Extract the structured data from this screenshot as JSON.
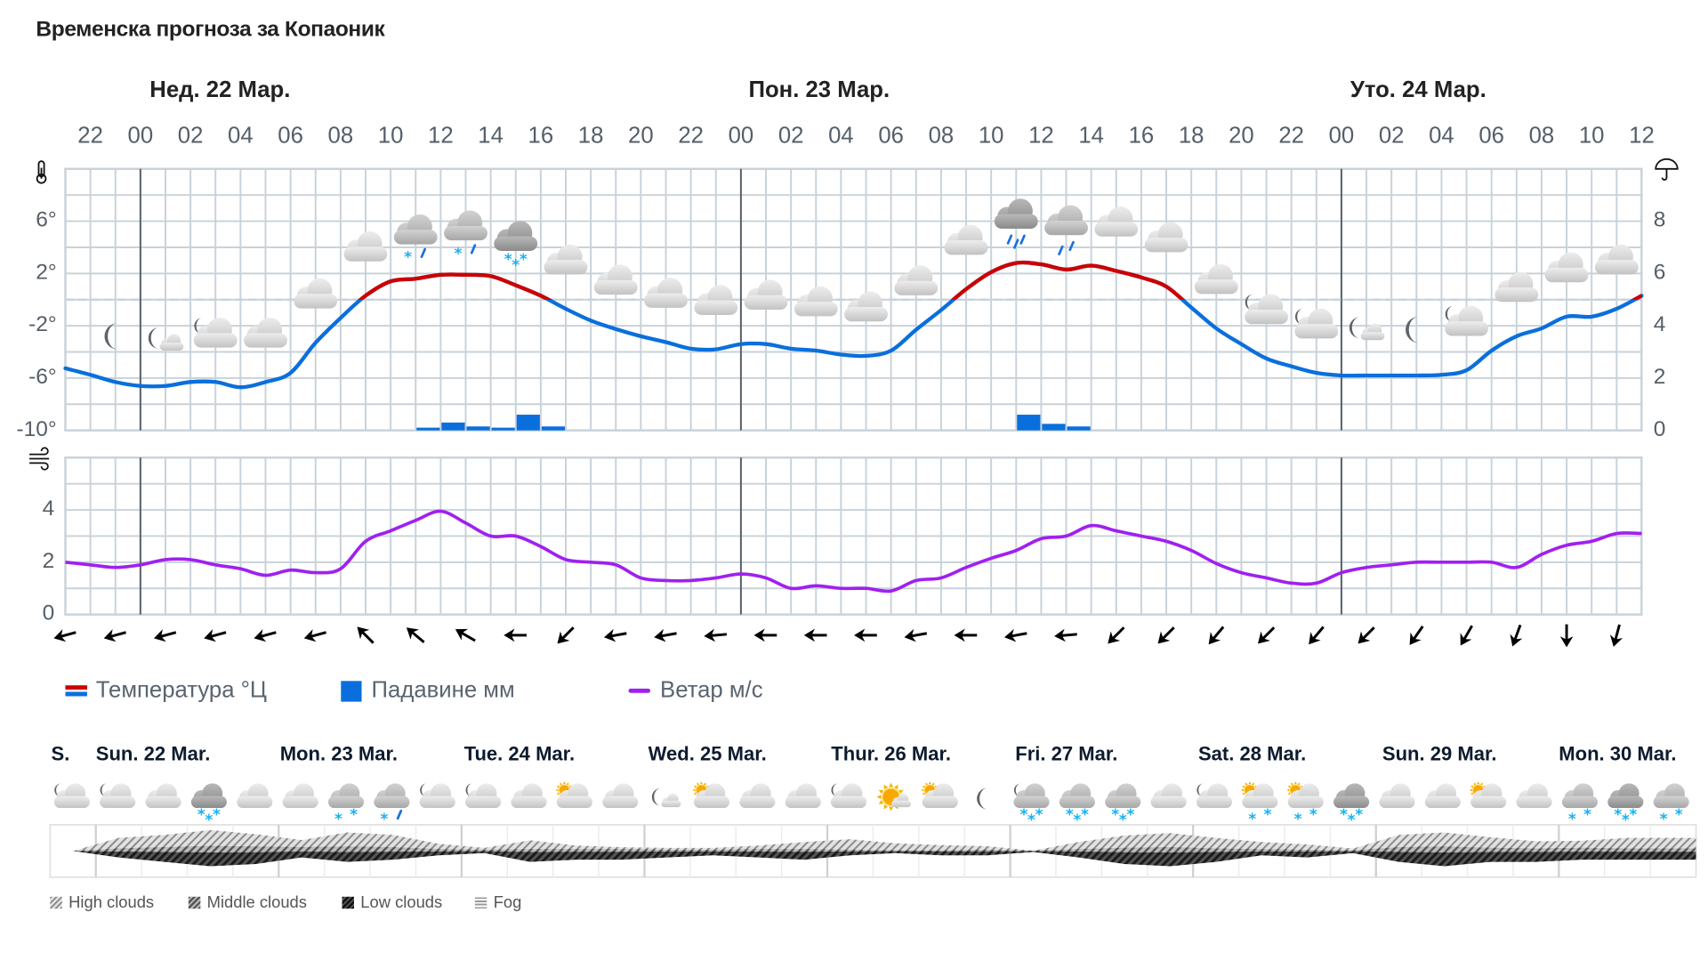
{
  "title": "Временска прогноза за Копаоник",
  "top_chart": {
    "day_headers": [
      "Нед. 22 Мар.",
      "Пон. 23 Мар.",
      "Уто. 24 Мар."
    ],
    "hour_labels": [
      "22",
      "00",
      "02",
      "04",
      "06",
      "08",
      "10",
      "12",
      "14",
      "16",
      "18",
      "20",
      "22",
      "00",
      "02",
      "04",
      "06",
      "08",
      "10",
      "12",
      "14",
      "16",
      "18",
      "20",
      "22",
      "00",
      "02",
      "04",
      "06",
      "08",
      "10",
      "12"
    ],
    "temp_axis_labels": [
      "6°",
      "2°",
      "-2°",
      "-6°",
      "-10°"
    ],
    "precip_axis_labels": [
      "8",
      "6",
      "4",
      "2",
      "0"
    ],
    "wind_axis_labels": [
      "4",
      "2",
      "0"
    ],
    "icons": {
      "thermometer": "thermometer-icon",
      "umbrella": "umbrella-icon",
      "wind": "wind-icon"
    },
    "weather_symbols": [
      [
        "moon",
        ""
      ],
      [
        "moon-small-cloud",
        ""
      ],
      [
        "moon-cloud",
        ""
      ],
      [
        "cloud",
        ""
      ],
      [
        "cloud",
        ""
      ],
      [
        "cloud",
        ""
      ],
      [
        "cloud-grey",
        "snow-rain"
      ],
      [
        "cloud-grey",
        "snow-rain"
      ],
      [
        "cloud-dark",
        "snow3"
      ],
      [
        "cloud",
        ""
      ],
      [
        "cloud",
        ""
      ],
      [
        "cloud",
        ""
      ],
      [
        "cloud",
        ""
      ],
      [
        "cloud",
        ""
      ],
      [
        "cloud",
        ""
      ],
      [
        "cloud",
        ""
      ],
      [
        "cloud",
        ""
      ],
      [
        "cloud",
        ""
      ],
      [
        "cloud-dark",
        "rain3"
      ],
      [
        "cloud-grey",
        "rain2"
      ],
      [
        "cloud",
        ""
      ],
      [
        "cloud",
        ""
      ],
      [
        "cloud",
        ""
      ],
      [
        "moon-cloud",
        ""
      ],
      [
        "moon-cloud",
        ""
      ],
      [
        "moon-small-cloud",
        ""
      ],
      [
        "moon",
        ""
      ],
      [
        "moon-cloud",
        ""
      ],
      [
        "cloud",
        ""
      ],
      [
        "cloud",
        ""
      ],
      [
        "cloud",
        ""
      ]
    ],
    "wind_arrow_bearings": [
      255,
      255,
      255,
      255,
      255,
      255,
      315,
      310,
      300,
      270,
      225,
      260,
      260,
      265,
      270,
      270,
      270,
      260,
      270,
      260,
      265,
      225,
      225,
      220,
      225,
      220,
      225,
      215,
      210,
      200,
      180,
      195
    ],
    "legend": [
      {
        "label": "Температура °Ц",
        "colors": [
          "#cc0000",
          "#0a6fdc"
        ]
      },
      {
        "label": "Падавине мм",
        "color": "#0a6fdc"
      },
      {
        "label": "Ветар м/с",
        "color": "#a020f0"
      }
    ]
  },
  "chart_data": [
    {
      "type": "line",
      "title": "",
      "x": [
        "21.03 21",
        "21.03 22",
        "21.03 23",
        "22.03 00",
        "22.03 01",
        "22.03 02",
        "22.03 03",
        "22.03 04",
        "22.03 05",
        "22.03 06",
        "22.03 07",
        "22.03 08",
        "22.03 09",
        "22.03 10",
        "22.03 11",
        "22.03 12",
        "22.03 13",
        "22.03 14",
        "22.03 15",
        "22.03 16",
        "22.03 17",
        "22.03 18",
        "22.03 19",
        "22.03 20",
        "22.03 21",
        "22.03 22",
        "22.03 23",
        "23.03 00",
        "23.03 01",
        "23.03 02",
        "23.03 03",
        "23.03 04",
        "23.03 05",
        "23.03 06",
        "23.03 07",
        "23.03 08",
        "23.03 09",
        "23.03 10",
        "23.03 11",
        "23.03 12",
        "23.03 13",
        "23.03 14",
        "23.03 15",
        "23.03 16",
        "23.03 17",
        "23.03 18",
        "23.03 19",
        "23.03 20",
        "23.03 21",
        "23.03 22",
        "23.03 23",
        "24.03 00",
        "24.03 01",
        "24.03 02",
        "24.03 03",
        "24.03 04",
        "24.03 05",
        "24.03 06",
        "24.03 07",
        "24.03 08",
        "24.03 09",
        "24.03 10",
        "24.03 11",
        "24.03 12"
      ],
      "ylim": [
        -10,
        10
      ],
      "y2lim": [
        0,
        10
      ],
      "grid": true,
      "series": [
        {
          "name": "Температура °Ц",
          "color_above_zero": "#cc0000",
          "color_below_zero": "#0a6fdc",
          "values": [
            -5.25,
            -5.75,
            -6.3,
            -6.6,
            -6.6,
            -6.3,
            -6.3,
            -6.7,
            -6.3,
            -5.6,
            -3.3,
            -1.4,
            0.3,
            1.4,
            1.6,
            1.9,
            1.9,
            1.8,
            1.1,
            0.3,
            -0.7,
            -1.6,
            -2.25,
            -2.8,
            -3.25,
            -3.75,
            -3.8,
            -3.4,
            -3.4,
            -3.75,
            -3.9,
            -4.2,
            -4.3,
            -3.9,
            -2.3,
            -0.8,
            0.8,
            2.1,
            2.8,
            2.7,
            2.3,
            2.6,
            2.2,
            1.7,
            1.0,
            -0.6,
            -2.2,
            -3.4,
            -4.5,
            -5.1,
            -5.6,
            -5.8,
            -5.8,
            -5.8,
            -5.8,
            -5.75,
            -5.4,
            -3.9,
            -2.8,
            -2.2,
            -1.3,
            -1.3,
            -0.7,
            0.3
          ]
        }
      ],
      "bars": {
        "name": "Падавине мм",
        "color": "#0a6fdc",
        "items": [
          {
            "x": "22.03 11",
            "value": 0.05
          },
          {
            "x": "22.03 12",
            "value": 0.3
          },
          {
            "x": "22.03 13",
            "value": 0.15
          },
          {
            "x": "22.03 14",
            "value": 0.05
          },
          {
            "x": "22.03 15",
            "value": 0.6
          },
          {
            "x": "22.03 16",
            "value": 0.15
          },
          {
            "x": "23.03 11",
            "value": 0.6
          },
          {
            "x": "23.03 12",
            "value": 0.25
          },
          {
            "x": "23.03 13",
            "value": 0.15
          }
        ]
      }
    },
    {
      "type": "line",
      "title": "",
      "ylim": [
        0,
        6
      ],
      "grid": true,
      "series": [
        {
          "name": "Ветар м/с",
          "color": "#a020f0",
          "values": [
            2.0,
            1.9,
            1.8,
            1.9,
            2.1,
            2.1,
            1.9,
            1.75,
            1.5,
            1.7,
            1.6,
            1.75,
            2.8,
            3.2,
            3.6,
            3.95,
            3.5,
            3.0,
            3.0,
            2.6,
            2.1,
            2.0,
            1.9,
            1.4,
            1.3,
            1.3,
            1.4,
            1.55,
            1.4,
            1.0,
            1.1,
            1.0,
            1.0,
            0.9,
            1.3,
            1.4,
            1.8,
            2.15,
            2.45,
            2.9,
            3.0,
            3.4,
            3.2,
            3.0,
            2.8,
            2.45,
            1.95,
            1.6,
            1.4,
            1.2,
            1.2,
            1.6,
            1.8,
            1.9,
            2.0,
            2.0,
            2.0,
            2.0,
            1.8,
            2.3,
            2.65,
            2.8,
            3.1,
            3.1
          ]
        }
      ]
    }
  ],
  "bottom": {
    "day_labels": [
      "S.",
      "Sun. 22 Mar.",
      "Mon. 23 Mar.",
      "Tue. 24 Mar.",
      "Wed. 25 Mar.",
      "Thur. 26 Mar.",
      "Fri. 27 Mar.",
      "Sat. 28 Mar.",
      "Sun. 29 Mar.",
      "Mon. 30 Mar."
    ],
    "symbols": [
      [
        "moon-cloud",
        ""
      ],
      [
        "moon-cloud",
        ""
      ],
      [
        "cloud",
        ""
      ],
      [
        "cloud-dark",
        "snow3"
      ],
      [
        "cloud",
        ""
      ],
      [
        "cloud",
        ""
      ],
      [
        "cloud-grey",
        "snow2"
      ],
      [
        "cloud-grey",
        "snow-rain"
      ],
      [
        "moon-cloud",
        ""
      ],
      [
        "moon-cloud",
        ""
      ],
      [
        "cloud",
        ""
      ],
      [
        "sun-cloud",
        ""
      ],
      [
        "cloud",
        ""
      ],
      [
        "moon-small-cloud",
        ""
      ],
      [
        "sun-cloud",
        ""
      ],
      [
        "cloud",
        ""
      ],
      [
        "cloud",
        ""
      ],
      [
        "moon-cloud",
        ""
      ],
      [
        "sun-small-cloud",
        ""
      ],
      [
        "sun-cloud",
        ""
      ],
      [
        "moon",
        ""
      ],
      [
        "moon-cloud-grey",
        "snow3"
      ],
      [
        "cloud-grey",
        "snow3"
      ],
      [
        "cloud-grey",
        "snow3"
      ],
      [
        "cloud",
        ""
      ],
      [
        "moon-cloud",
        ""
      ],
      [
        "sun-cloud",
        "snow2"
      ],
      [
        "sun-cloud",
        "snow2"
      ],
      [
        "cloud-dark",
        "snow3"
      ],
      [
        "cloud",
        ""
      ],
      [
        "cloud",
        ""
      ],
      [
        "sun-cloud",
        ""
      ],
      [
        "cloud",
        ""
      ],
      [
        "cloud-grey",
        "snow2"
      ],
      [
        "cloud-dark",
        "snow3"
      ],
      [
        "cloud-grey",
        "snow2"
      ]
    ],
    "cloud_cover": {
      "high": [
        0,
        0.6,
        0.7,
        0.9,
        0.7,
        0.4,
        0.8,
        0.7,
        0.3,
        0.1,
        0.5,
        0.2,
        0.1,
        0.1,
        0.1,
        0.2,
        0.4,
        0.6,
        0.4,
        0.3,
        0.2,
        0,
        0.4,
        0.7,
        0.8,
        0.6,
        0.4,
        0.3,
        0.1,
        0.7,
        0.8,
        0.6,
        0.4,
        0.4,
        0.6,
        0.6
      ],
      "middle": [
        0,
        0.4,
        0.6,
        0.8,
        0.7,
        0.6,
        0.7,
        0.6,
        0.3,
        0.2,
        0.3,
        0.3,
        0.3,
        0.2,
        0.2,
        0.3,
        0.3,
        0.2,
        0.1,
        0.1,
        0.2,
        0.05,
        0.3,
        0.5,
        0.6,
        0.4,
        0.3,
        0.2,
        0.1,
        0.6,
        0.7,
        0.5,
        0.4,
        0.5,
        0.4,
        0.4
      ],
      "low": [
        0,
        0.3,
        0.5,
        0.7,
        0.6,
        0.3,
        0.5,
        0.4,
        0.2,
        0.1,
        0.5,
        0.4,
        0.4,
        0.3,
        0.2,
        0.3,
        0.4,
        0.2,
        0.1,
        0.2,
        0.2,
        0.05,
        0.3,
        0.6,
        0.7,
        0.5,
        0.2,
        0.3,
        0.1,
        0.5,
        0.7,
        0.5,
        0.5,
        0.4,
        0.4,
        0.4
      ]
    },
    "legend": [
      "High clouds",
      "Middle clouds",
      "Low clouds",
      "Fog"
    ]
  }
}
